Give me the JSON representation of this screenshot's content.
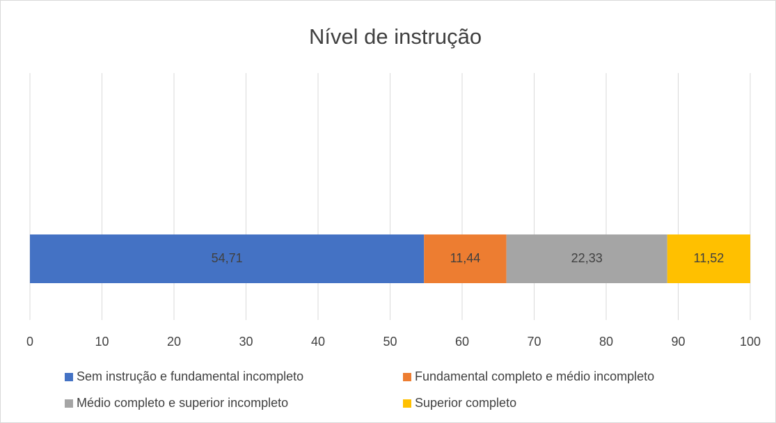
{
  "chart_data": {
    "type": "stacked-bar-horizontal",
    "title": "Nível de instrução",
    "categories": [
      null
    ],
    "series": [
      {
        "name": "Sem instrução e fundamental incompleto",
        "color": "#4472c4",
        "values": [
          54.71
        ],
        "value_labels": [
          "54,71"
        ]
      },
      {
        "name": "Fundamental completo e médio incompleto",
        "color": "#ed7d31",
        "values": [
          11.44
        ],
        "value_labels": [
          "11,44"
        ]
      },
      {
        "name": "Médio completo e superior incompleto",
        "color": "#a5a5a5",
        "values": [
          22.33
        ],
        "value_labels": [
          "22,33"
        ]
      },
      {
        "name": "Superior completo",
        "color": "#ffc000",
        "values": [
          11.52
        ],
        "value_labels": [
          "11,52"
        ]
      }
    ],
    "xlim": [
      0,
      100
    ],
    "xticks": [
      0,
      10,
      20,
      30,
      40,
      50,
      60,
      70,
      80,
      90,
      100
    ],
    "grid": true,
    "legend": "bottom"
  }
}
